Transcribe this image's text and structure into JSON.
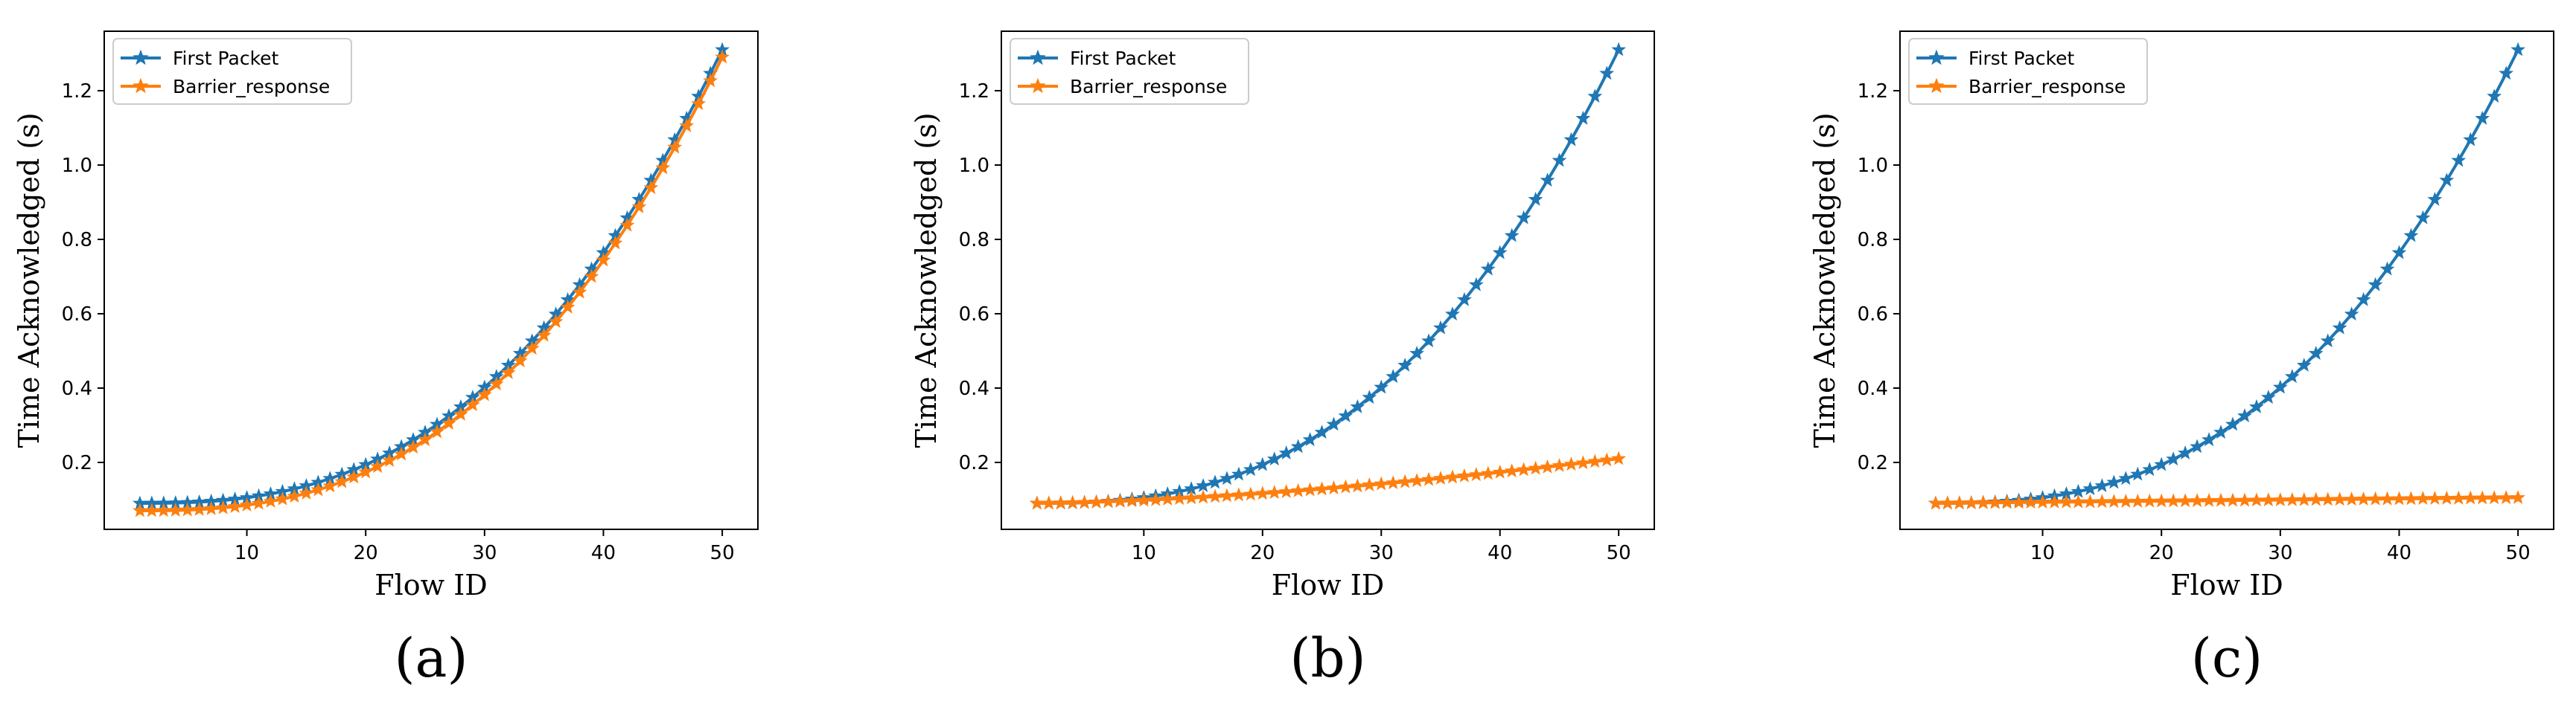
{
  "figure": {
    "colors": {
      "first_packet": "#1f77b4",
      "barrier_response": "#ff7f0e"
    },
    "marker": "star-marker"
  },
  "chart_data": [
    {
      "type": "line",
      "panel_label": "(a)",
      "xlabel": "Flow ID",
      "ylabel": "Time Acknowledged (s)",
      "xlim": [
        -2,
        53
      ],
      "ylim": [
        0.02,
        1.36
      ],
      "xticks": [
        10,
        20,
        30,
        40,
        50
      ],
      "yticks": [
        0.2,
        0.4,
        0.6,
        0.8,
        1.0,
        1.2
      ],
      "ytick_labels": [
        "0.2",
        "0.4",
        "0.6",
        "0.8",
        "1.0",
        "1.2"
      ],
      "legend": {
        "position": "top-left",
        "entries": [
          "First Packet",
          "Barrier_response"
        ]
      },
      "series": [
        {
          "name": "First Packet",
          "model": {
            "x_start": 1,
            "x_end": 50,
            "y_start": 0.09,
            "y_end": 1.31,
            "power": 2.6
          }
        },
        {
          "name": "Barrier_response",
          "model": {
            "x_start": 1,
            "x_end": 50,
            "y_start": 0.07,
            "y_end": 1.29,
            "power": 2.6
          }
        }
      ]
    },
    {
      "type": "line",
      "panel_label": "(b)",
      "xlabel": "Flow ID",
      "ylabel": "Time Acknowledged (s)",
      "xlim": [
        -2,
        53
      ],
      "ylim": [
        0.02,
        1.36
      ],
      "xticks": [
        10,
        20,
        30,
        40,
        50
      ],
      "yticks": [
        0.2,
        0.4,
        0.6,
        0.8,
        1.0,
        1.2
      ],
      "ytick_labels": [
        "0.2",
        "0.4",
        "0.6",
        "0.8",
        "1.0",
        "1.2"
      ],
      "legend": {
        "position": "top-left",
        "entries": [
          "First Packet",
          "Barrier_response"
        ]
      },
      "series": [
        {
          "name": "First Packet",
          "model": {
            "x_start": 1,
            "x_end": 50,
            "y_start": 0.09,
            "y_end": 1.31,
            "power": 2.6
          }
        },
        {
          "name": "Barrier_response",
          "model": {
            "x_start": 1,
            "x_end": 50,
            "y_start": 0.09,
            "y_end": 0.21,
            "power": 1.6
          }
        }
      ]
    },
    {
      "type": "line",
      "panel_label": "(c)",
      "xlabel": "Flow ID",
      "ylabel": "Time Acknowledged (s)",
      "xlim": [
        -2,
        53
      ],
      "ylim": [
        0.02,
        1.36
      ],
      "xticks": [
        10,
        20,
        30,
        40,
        50
      ],
      "yticks": [
        0.2,
        0.4,
        0.6,
        0.8,
        1.0,
        1.2
      ],
      "ytick_labels": [
        "0.2",
        "0.4",
        "0.6",
        "0.8",
        "1.0",
        "1.2"
      ],
      "legend": {
        "position": "top-left",
        "entries": [
          "First Packet",
          "Barrier_response"
        ]
      },
      "series": [
        {
          "name": "First Packet",
          "model": {
            "x_start": 1,
            "x_end": 50,
            "y_start": 0.09,
            "y_end": 1.31,
            "power": 2.6
          }
        },
        {
          "name": "Barrier_response",
          "model": {
            "x_start": 1,
            "x_end": 50,
            "y_start": 0.09,
            "y_end": 0.105,
            "power": 1.0
          }
        }
      ]
    }
  ]
}
